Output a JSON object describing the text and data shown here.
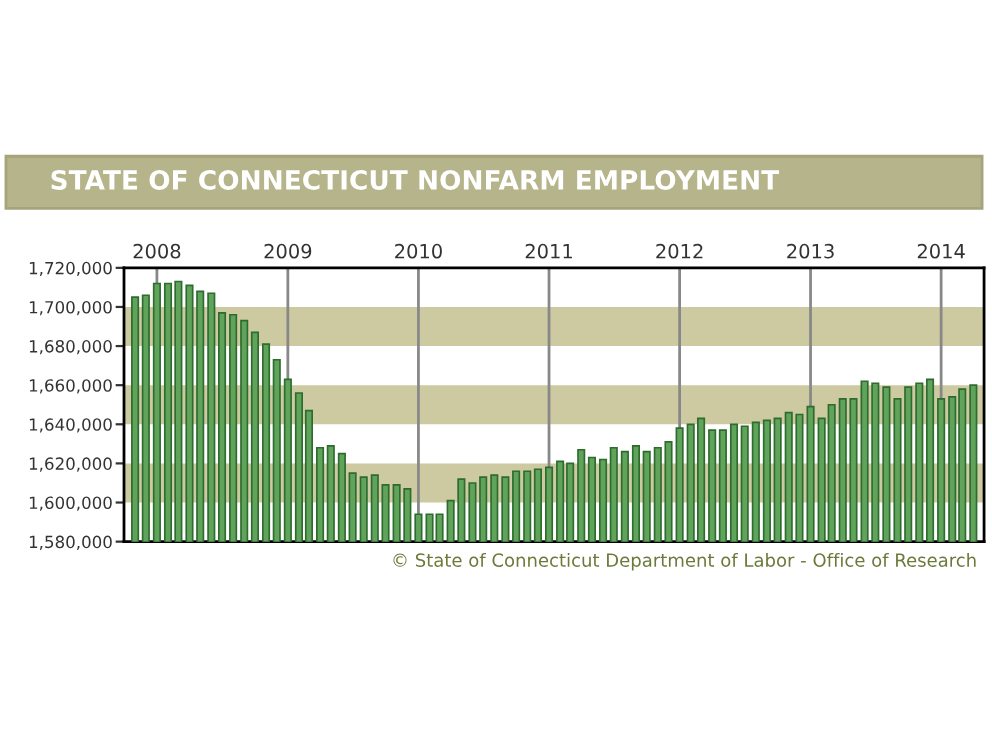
{
  "chart_data": {
    "type": "bar",
    "title": "STATE OF CONNECTICUT NONFARM EMPLOYMENT",
    "x": [
      "2007-11",
      "2007-12",
      "2008-01",
      "2008-02",
      "2008-03",
      "2008-04",
      "2008-05",
      "2008-06",
      "2008-07",
      "2008-08",
      "2008-09",
      "2008-10",
      "2008-11",
      "2008-12",
      "2009-01",
      "2009-02",
      "2009-03",
      "2009-04",
      "2009-05",
      "2009-06",
      "2009-07",
      "2009-08",
      "2009-09",
      "2009-10",
      "2009-11",
      "2009-12",
      "2010-01",
      "2010-02",
      "2010-03",
      "2010-04",
      "2010-05",
      "2010-06",
      "2010-07",
      "2010-08",
      "2010-09",
      "2010-10",
      "2010-11",
      "2010-12",
      "2011-01",
      "2011-02",
      "2011-03",
      "2011-04",
      "2011-05",
      "2011-06",
      "2011-07",
      "2011-08",
      "2011-09",
      "2011-10",
      "2011-11",
      "2011-12",
      "2012-01",
      "2012-02",
      "2012-03",
      "2012-04",
      "2012-05",
      "2012-06",
      "2012-07",
      "2012-08",
      "2012-09",
      "2012-10",
      "2012-11",
      "2012-12",
      "2013-01",
      "2013-02",
      "2013-03",
      "2013-04",
      "2013-05",
      "2013-06",
      "2013-07",
      "2013-08",
      "2013-09",
      "2013-10",
      "2013-11",
      "2013-12",
      "2014-01",
      "2014-02",
      "2014-03",
      "2014-04"
    ],
    "values": [
      1705000,
      1706000,
      1712000,
      1712000,
      1713000,
      1711000,
      1708000,
      1707000,
      1697000,
      1696000,
      1693000,
      1687000,
      1681000,
      1673000,
      1663000,
      1656000,
      1647000,
      1628000,
      1629000,
      1625000,
      1615000,
      1613000,
      1614000,
      1609000,
      1609000,
      1607000,
      1594000,
      1594000,
      1594000,
      1601000,
      1612000,
      1610000,
      1613000,
      1614000,
      1613000,
      1616000,
      1616000,
      1617000,
      1618000,
      1621000,
      1620000,
      1627000,
      1623000,
      1622000,
      1628000,
      1626000,
      1629000,
      1626000,
      1628000,
      1631000,
      1638000,
      1640000,
      1643000,
      1637000,
      1637000,
      1640000,
      1639000,
      1641000,
      1642000,
      1643000,
      1646000,
      1645000,
      1649000,
      1643000,
      1650000,
      1653000,
      1653000,
      1662000,
      1661000,
      1659000,
      1653000,
      1659000,
      1661000,
      1663000,
      1653000,
      1654000,
      1658000,
      1660000
    ],
    "color": "#5fa45a",
    "xlim": [
      "2007-10-01",
      "2014-05-01"
    ],
    "xticks": [
      {
        "value": "2008-01",
        "label": "2008"
      },
      {
        "value": "2009-01",
        "label": "2009"
      },
      {
        "value": "2010-01",
        "label": "2010"
      },
      {
        "value": "2011-01",
        "label": "2011"
      },
      {
        "value": "2012-01",
        "label": "2012"
      },
      {
        "value": "2013-01",
        "label": "2013"
      },
      {
        "value": "2014-01",
        "label": "2014"
      }
    ],
    "ylim": [
      1580000,
      1720000
    ],
    "yticks": [
      {
        "value": 1580000,
        "label": "1,580,000"
      },
      {
        "value": 1600000,
        "label": "1,600,000"
      },
      {
        "value": 1620000,
        "label": "1,620,000"
      },
      {
        "value": 1640000,
        "label": "1,640,000"
      },
      {
        "value": 1660000,
        "label": "1,660,000"
      },
      {
        "value": 1680000,
        "label": "1,680,000"
      },
      {
        "value": 1700000,
        "label": "1,700,000"
      },
      {
        "value": 1720000,
        "label": "1,720,000"
      }
    ],
    "bands": [
      {
        "axis": "y",
        "from": 1600000,
        "to": 1620000,
        "color": "#cdc9a0"
      },
      {
        "axis": "y",
        "from": 1640000,
        "to": 1660000,
        "color": "#cdc9a0"
      },
      {
        "axis": "y",
        "from": 1680000,
        "to": 1700000,
        "color": "#cdc9a0"
      }
    ],
    "grid": "x",
    "annotations": [
      "© State of Connecticut Department of Labor - Office of Research"
    ]
  }
}
